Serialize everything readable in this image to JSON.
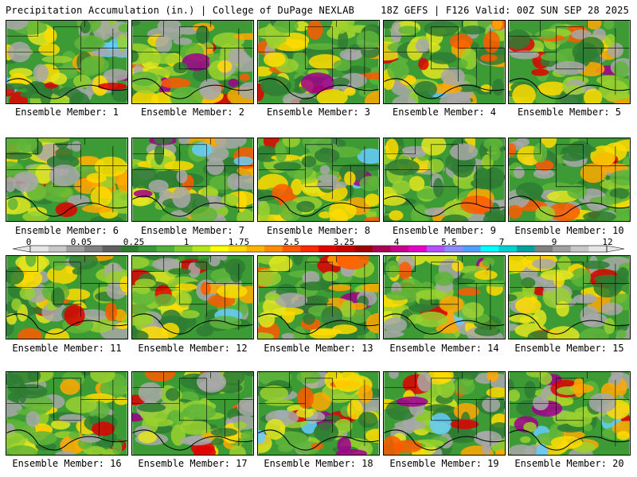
{
  "header": {
    "left": "Precipitation Accumulation (in.) | College of DuPage NEXLAB",
    "right": "18Z GEFS | F126 Valid: 00Z SUN SEP 28 2025"
  },
  "members": [
    {
      "label": "Ensemble Member: 1",
      "seed": 11
    },
    {
      "label": "Ensemble Member: 2",
      "seed": 23
    },
    {
      "label": "Ensemble Member: 3",
      "seed": 37
    },
    {
      "label": "Ensemble Member: 4",
      "seed": 41
    },
    {
      "label": "Ensemble Member: 5",
      "seed": 53
    },
    {
      "label": "Ensemble Member: 6",
      "seed": 67
    },
    {
      "label": "Ensemble Member: 7",
      "seed": 71
    },
    {
      "label": "Ensemble Member: 8",
      "seed": 83
    },
    {
      "label": "Ensemble Member: 9",
      "seed": 97
    },
    {
      "label": "Ensemble Member: 10",
      "seed": 101
    },
    {
      "label": "Ensemble Member: 11",
      "seed": 113
    },
    {
      "label": "Ensemble Member: 12",
      "seed": 127
    },
    {
      "label": "Ensemble Member: 13",
      "seed": 131
    },
    {
      "label": "Ensemble Member: 14",
      "seed": 149
    },
    {
      "label": "Ensemble Member: 15",
      "seed": 151
    },
    {
      "label": "Ensemble Member: 16",
      "seed": 163
    },
    {
      "label": "Ensemble Member: 17",
      "seed": 179
    },
    {
      "label": "Ensemble Member: 18",
      "seed": 181
    },
    {
      "label": "Ensemble Member: 19",
      "seed": 193
    },
    {
      "label": "Ensemble Member: 20",
      "seed": 199
    }
  ],
  "colorbar": {
    "tick_labels": [
      "0",
      "0.05",
      "0.25",
      "1",
      "1.75",
      "2.5",
      "3.25",
      "4",
      "5.5",
      "7",
      "9",
      "12"
    ],
    "colors": [
      "#e6e6e6",
      "#c8c8c8",
      "#a0a0a0",
      "#808080",
      "#606060",
      "#2d7d2d",
      "#3a963a",
      "#4fb03a",
      "#7ccd2d",
      "#b4e61e",
      "#ffff00",
      "#ffdc00",
      "#ffb400",
      "#ff8c00",
      "#ff5a00",
      "#ff2800",
      "#e60000",
      "#c80000",
      "#a00000",
      "#aa0055",
      "#c8008c",
      "#e600c8",
      "#b450ff",
      "#8c8cff",
      "#50a0ff",
      "#00ffff",
      "#00d2d2",
      "#00a0a0",
      "#808080",
      "#a0a0a0",
      "#c8c8c8",
      "#e6e6e6"
    ]
  },
  "legend_palette": [
    "#a8a8a8",
    "#2e7d32",
    "#3d9b35",
    "#5fb53a",
    "#9ad12f",
    "#e2e61e",
    "#ffdc00",
    "#ffa800",
    "#ff5a00",
    "#e00000",
    "#a0008c",
    "#66ccff"
  ]
}
